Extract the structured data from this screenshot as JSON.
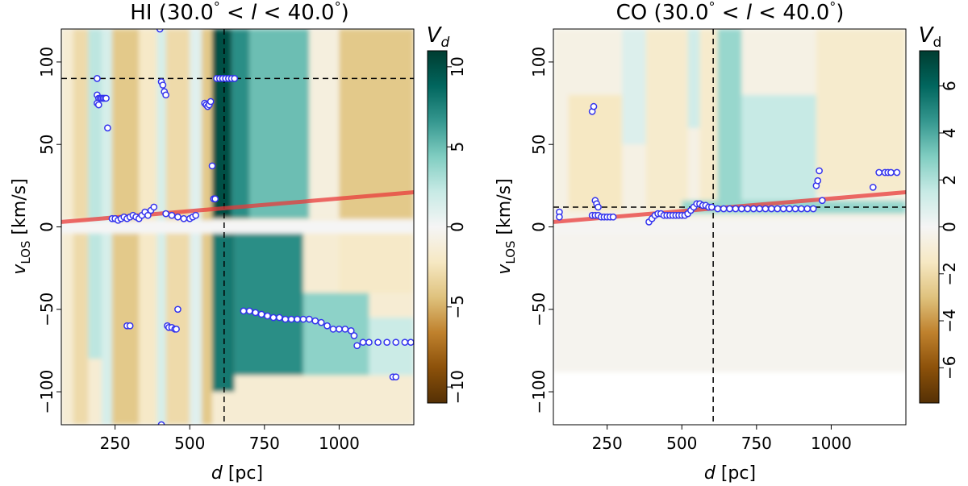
{
  "chart_data": [
    {
      "type": "heatmap",
      "title_prefix": "HI (30.0",
      "title_mid": " < ",
      "title_var": "l",
      "title_suffix": " < 40.0",
      "title_degree": "°",
      "title_close": ")",
      "xlabel_var": "d",
      "xlabel_unit": " [pc]",
      "ylabel_var": "v",
      "ylabel_sub": "LOS",
      "ylabel_unit": " [km/s]",
      "xlim": [
        70,
        1250
      ],
      "ylim": [
        -120,
        120
      ],
      "xticks": [
        250,
        500,
        750,
        1000
      ],
      "xtick_labels": [
        "250",
        "500",
        "750",
        "1000"
      ],
      "yticks": [
        100,
        50,
        0,
        -50,
        -100
      ],
      "ytick_labels": [
        "100",
        "50",
        "0",
        "−50",
        "−100"
      ],
      "colorbar": {
        "label_var": "V",
        "label_sub": "d",
        "sub_italic": true,
        "range": [
          -11,
          11
        ],
        "ticks": [
          10,
          5,
          0,
          -5,
          -10
        ],
        "tick_labels": [
          "10",
          "5",
          "0",
          "−5",
          "−10"
        ],
        "cmap": "BrBG"
      },
      "vline_x": 615,
      "hline_y": 90,
      "fit_line": {
        "x": [
          70,
          1250
        ],
        "y": [
          3,
          21
        ],
        "color": "#e8393a"
      },
      "fields": [
        {
          "x0": 70,
          "x1": 1250,
          "y0": -120,
          "y1": 120,
          "v": -1.5
        },
        {
          "x0": 110,
          "x1": 160,
          "y0": -120,
          "y1": 120,
          "v": -3
        },
        {
          "x0": 160,
          "x1": 205,
          "y0": -80,
          "y1": 120,
          "v": 2.5
        },
        {
          "x0": 205,
          "x1": 240,
          "y0": -120,
          "y1": 120,
          "v": 1.5
        },
        {
          "x0": 240,
          "x1": 330,
          "y0": -120,
          "y1": 120,
          "v": -4
        },
        {
          "x0": 330,
          "x1": 390,
          "y0": -120,
          "y1": 120,
          "v": -2
        },
        {
          "x0": 390,
          "x1": 420,
          "y0": -120,
          "y1": 120,
          "v": 1.5
        },
        {
          "x0": 420,
          "x1": 500,
          "y0": -120,
          "y1": 120,
          "v": -3
        },
        {
          "x0": 500,
          "x1": 540,
          "y0": -120,
          "y1": 120,
          "v": 1
        },
        {
          "x0": 540,
          "x1": 575,
          "y0": -120,
          "y1": 120,
          "v": -4
        },
        {
          "x0": 575,
          "x1": 640,
          "y0": 5,
          "y1": 120,
          "v": 10
        },
        {
          "x0": 640,
          "x1": 700,
          "y0": 5,
          "y1": 120,
          "v": 7
        },
        {
          "x0": 700,
          "x1": 900,
          "y0": 5,
          "y1": 120,
          "v": 5
        },
        {
          "x0": 900,
          "x1": 1000,
          "y0": 5,
          "y1": 120,
          "v": -1
        },
        {
          "x0": 1000,
          "x1": 1250,
          "y0": 5,
          "y1": 120,
          "v": -4
        },
        {
          "x0": 575,
          "x1": 650,
          "y0": -100,
          "y1": 0,
          "v": 8
        },
        {
          "x0": 650,
          "x1": 880,
          "y0": -90,
          "y1": 0,
          "v": 7
        },
        {
          "x0": 880,
          "x1": 1100,
          "y0": -90,
          "y1": -40,
          "v": 4
        },
        {
          "x0": 1100,
          "x1": 1250,
          "y0": -90,
          "y1": -55,
          "v": 2
        },
        {
          "x0": 1000,
          "x1": 1250,
          "y0": -40,
          "y1": 0,
          "v": -2
        },
        {
          "x0": 70,
          "x1": 1250,
          "y0": -4,
          "y1": 4,
          "v": 0
        }
      ],
      "points": [
        [
          190,
          90
        ],
        [
          190,
          80
        ],
        [
          195,
          78
        ],
        [
          200,
          78
        ],
        [
          205,
          78
        ],
        [
          210,
          78
        ],
        [
          215,
          78
        ],
        [
          220,
          78
        ],
        [
          190,
          75
        ],
        [
          195,
          74
        ],
        [
          225,
          60
        ],
        [
          400,
          120
        ],
        [
          405,
          88
        ],
        [
          410,
          86
        ],
        [
          415,
          82
        ],
        [
          420,
          80
        ],
        [
          550,
          75
        ],
        [
          555,
          74
        ],
        [
          560,
          73
        ],
        [
          565,
          74
        ],
        [
          570,
          76
        ],
        [
          575,
          37
        ],
        [
          580,
          17
        ],
        [
          585,
          17
        ],
        [
          590,
          90
        ],
        [
          600,
          90
        ],
        [
          610,
          90
        ],
        [
          620,
          90
        ],
        [
          630,
          90
        ],
        [
          640,
          90
        ],
        [
          650,
          90
        ],
        [
          240,
          5
        ],
        [
          250,
          5
        ],
        [
          260,
          4
        ],
        [
          270,
          5
        ],
        [
          280,
          6
        ],
        [
          290,
          5
        ],
        [
          300,
          6
        ],
        [
          310,
          7
        ],
        [
          320,
          6
        ],
        [
          330,
          5
        ],
        [
          340,
          7
        ],
        [
          350,
          9
        ],
        [
          360,
          7
        ],
        [
          370,
          10
        ],
        [
          380,
          12
        ],
        [
          420,
          8
        ],
        [
          440,
          7
        ],
        [
          460,
          6
        ],
        [
          480,
          5
        ],
        [
          500,
          5
        ],
        [
          510,
          6
        ],
        [
          520,
          7
        ],
        [
          290,
          -60
        ],
        [
          300,
          -60
        ],
        [
          425,
          -60
        ],
        [
          430,
          -61
        ],
        [
          440,
          -61
        ],
        [
          450,
          -62
        ],
        [
          455,
          -62
        ],
        [
          460,
          -50
        ],
        [
          405,
          -120
        ],
        [
          680,
          -51
        ],
        [
          700,
          -51
        ],
        [
          720,
          -52
        ],
        [
          740,
          -53
        ],
        [
          760,
          -54
        ],
        [
          780,
          -55
        ],
        [
          800,
          -55
        ],
        [
          820,
          -56
        ],
        [
          840,
          -56
        ],
        [
          860,
          -56
        ],
        [
          880,
          -56
        ],
        [
          900,
          -56
        ],
        [
          920,
          -57
        ],
        [
          940,
          -58
        ],
        [
          960,
          -60
        ],
        [
          980,
          -62
        ],
        [
          1000,
          -62
        ],
        [
          1020,
          -62
        ],
        [
          1040,
          -63
        ],
        [
          1050,
          -66
        ],
        [
          1060,
          -72
        ],
        [
          1080,
          -70
        ],
        [
          1100,
          -70
        ],
        [
          1130,
          -70
        ],
        [
          1160,
          -70
        ],
        [
          1190,
          -70
        ],
        [
          1220,
          -70
        ],
        [
          1240,
          -70
        ],
        [
          1180,
          -91
        ],
        [
          1190,
          -91
        ]
      ]
    },
    {
      "type": "heatmap",
      "title_prefix": "CO (30.0",
      "title_mid": " < ",
      "title_var": "l",
      "title_suffix": " < 40.0",
      "title_degree": "°",
      "title_close": ")",
      "xlabel_var": "d",
      "xlabel_unit": " [pc]",
      "ylabel_var": "v",
      "ylabel_sub": "LOS",
      "ylabel_unit": " [km/s]",
      "xlim": [
        70,
        1250
      ],
      "ylim": [
        -120,
        120
      ],
      "xticks": [
        250,
        500,
        750,
        1000
      ],
      "xtick_labels": [
        "250",
        "500",
        "750",
        "1000"
      ],
      "yticks": [
        100,
        50,
        0,
        -50,
        -100
      ],
      "ytick_labels": [
        "100",
        "50",
        "0",
        "−50",
        "−100"
      ],
      "colorbar": {
        "label_var": "V",
        "label_sub": "d",
        "sub_italic": false,
        "range": [
          -7.5,
          7.5
        ],
        "ticks": [
          6,
          4,
          2,
          0,
          -2,
          -4,
          -6
        ],
        "tick_labels": [
          "6",
          "4",
          "2",
          "0",
          "−2",
          "−4",
          "−6"
        ],
        "cmap": "BrBG"
      },
      "vline_x": 605,
      "hline_y": 12,
      "fit_line": {
        "x": [
          70,
          1250
        ],
        "y": [
          3,
          21
        ],
        "color": "#e8393a"
      },
      "fields": [
        {
          "x0": 70,
          "x1": 1250,
          "y0": -88,
          "y1": 120,
          "v": -0.2
        },
        {
          "x0": 70,
          "x1": 1250,
          "y0": 5,
          "y1": 120,
          "v": -0.5
        },
        {
          "x0": 120,
          "x1": 300,
          "y0": 10,
          "y1": 80,
          "v": -1.5
        },
        {
          "x0": 300,
          "x1": 380,
          "y0": 50,
          "y1": 120,
          "v": 0.8
        },
        {
          "x0": 380,
          "x1": 520,
          "y0": 10,
          "y1": 120,
          "v": -1.2
        },
        {
          "x0": 520,
          "x1": 560,
          "y0": 60,
          "y1": 120,
          "v": 1.2
        },
        {
          "x0": 560,
          "x1": 620,
          "y0": 10,
          "y1": 120,
          "v": -1.2
        },
        {
          "x0": 620,
          "x1": 700,
          "y0": 15,
          "y1": 120,
          "v": 2.5
        },
        {
          "x0": 700,
          "x1": 950,
          "y0": 15,
          "y1": 80,
          "v": 1.5
        },
        {
          "x0": 950,
          "x1": 1250,
          "y0": 20,
          "y1": 120,
          "v": -1.2
        },
        {
          "x0": 500,
          "x1": 1250,
          "y0": 8,
          "y1": 16,
          "v": 2.5
        },
        {
          "x0": 70,
          "x1": 1250,
          "y0": -5,
          "y1": 5,
          "v": -0.1
        }
      ],
      "points": [
        [
          90,
          9
        ],
        [
          90,
          6
        ],
        [
          200,
          70
        ],
        [
          205,
          73
        ],
        [
          210,
          16
        ],
        [
          215,
          14
        ],
        [
          220,
          12
        ],
        [
          200,
          7
        ],
        [
          210,
          7
        ],
        [
          220,
          7
        ],
        [
          230,
          6
        ],
        [
          240,
          6
        ],
        [
          250,
          6
        ],
        [
          260,
          6
        ],
        [
          270,
          6
        ],
        [
          390,
          3
        ],
        [
          400,
          5
        ],
        [
          410,
          7
        ],
        [
          420,
          8
        ],
        [
          430,
          8
        ],
        [
          440,
          7
        ],
        [
          450,
          7
        ],
        [
          460,
          7
        ],
        [
          470,
          7
        ],
        [
          480,
          7
        ],
        [
          490,
          7
        ],
        [
          500,
          7
        ],
        [
          510,
          7
        ],
        [
          520,
          8
        ],
        [
          530,
          10
        ],
        [
          540,
          12
        ],
        [
          550,
          14
        ],
        [
          560,
          14
        ],
        [
          570,
          13
        ],
        [
          580,
          13
        ],
        [
          590,
          12
        ],
        [
          600,
          12
        ],
        [
          620,
          11
        ],
        [
          640,
          11
        ],
        [
          660,
          11
        ],
        [
          680,
          11
        ],
        [
          700,
          11
        ],
        [
          720,
          11
        ],
        [
          740,
          11
        ],
        [
          760,
          11
        ],
        [
          780,
          11
        ],
        [
          800,
          11
        ],
        [
          820,
          11
        ],
        [
          840,
          11
        ],
        [
          860,
          11
        ],
        [
          880,
          11
        ],
        [
          900,
          11
        ],
        [
          920,
          11
        ],
        [
          940,
          11
        ],
        [
          950,
          25
        ],
        [
          955,
          28
        ],
        [
          960,
          34
        ],
        [
          970,
          16
        ],
        [
          1140,
          24
        ],
        [
          1160,
          33
        ],
        [
          1180,
          33
        ],
        [
          1190,
          33
        ],
        [
          1200,
          33
        ],
        [
          1220,
          33
        ]
      ]
    }
  ]
}
